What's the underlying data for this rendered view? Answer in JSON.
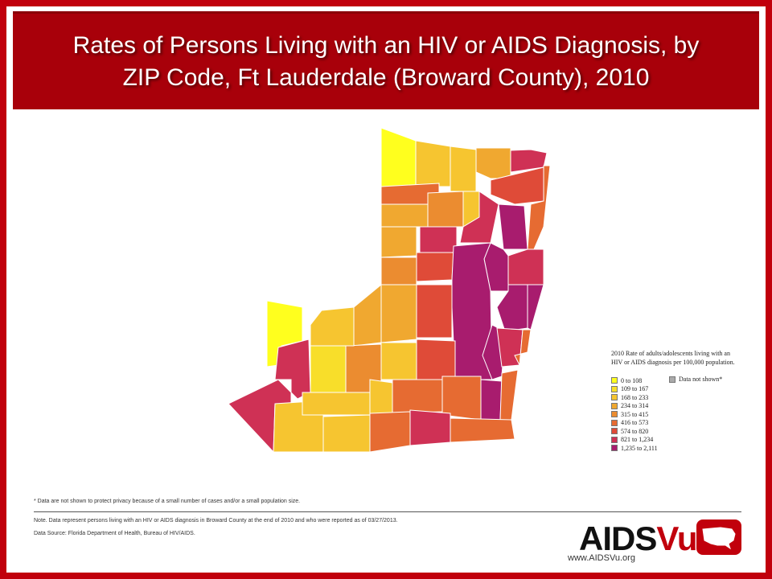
{
  "title": {
    "line1": "Rates of Persons Living with an HIV or AIDS Diagnosis, by",
    "line2": "ZIP Code, Ft Lauderdale (Broward County), 2010"
  },
  "legend": {
    "title_line1": "2010 Rate of adults/adolescents living with an",
    "title_line2": "HIV or AIDS diagnosis per 100,000 population.",
    "classes": [
      {
        "label": "0 to 108",
        "color": "#ffff1e"
      },
      {
        "label": "109 to 167",
        "color": "#f8de2a"
      },
      {
        "label": "168 to 233",
        "color": "#f6c530"
      },
      {
        "label": "234 to 314",
        "color": "#f0a830"
      },
      {
        "label": "315 to 415",
        "color": "#eb8c30"
      },
      {
        "label": "416 to 573",
        "color": "#e66b32"
      },
      {
        "label": "574 to 820",
        "color": "#df4b38"
      },
      {
        "label": "821 to 1,234",
        "color": "#cf3155"
      },
      {
        "label": "1,235 to 2,111",
        "color": "#a81c6e"
      }
    ],
    "not_shown": {
      "label": "Data not shown*",
      "color": "#aaaaaa"
    }
  },
  "footnotes": {
    "privacy": "* Data are not shown to protect privacy because of a small number of cases and/or a small population size.",
    "note": "Note. Data represent persons living with an HIV or AIDS diagnosis in Broward County at the end of 2010 and who were reported as of 03/27/2013.",
    "source": "Data Source: Florida Department of Health, Bureau of HIV/AIDS."
  },
  "logo": {
    "part1": "AIDS",
    "part2": "Vu",
    "url": "www.AIDSVu.org"
  },
  "colors": {
    "border": "#c1000c",
    "header": "#a8000a",
    "accent": "#c1000c"
  }
}
